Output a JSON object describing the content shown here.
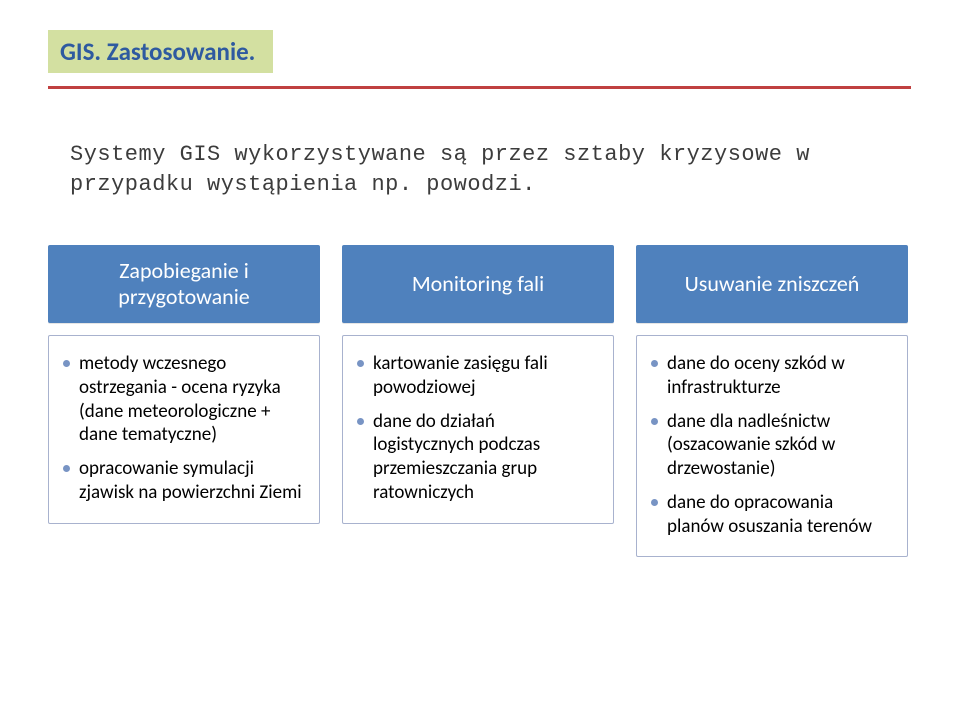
{
  "title": "GIS. Zastosowanie.",
  "title_color": "#2e5aa0",
  "title_bg": "#d3e0a1",
  "rule_color": "#c04040",
  "intro": "Systemy GIS wykorzystywane są przez sztaby kryzysowe w przypadku wystąpienia np. powodzi.",
  "intro_fontsize": 22,
  "header_fontsize": 22,
  "body_fontsize": 19,
  "body_border_color": "#a8b2ce",
  "columns": [
    {
      "header": "Zapobieganie i przygotowanie",
      "header_bg": "#4f81bd",
      "dot_color": "#7894c4",
      "bullets": [
        "metody wczesnego ostrzegania - ocena ryzyka (dane meteorologiczne + dane tematyczne)",
        "opracowanie symulacji zjawisk na powierzchni Ziemi"
      ]
    },
    {
      "header": "Monitoring fali",
      "header_bg": "#4f81bd",
      "dot_color": "#7894c4",
      "bullets": [
        "kartowanie zasięgu fali powodziowej",
        "dane do działań logistycznych podczas przemieszczania grup ratowniczych"
      ]
    },
    {
      "header": "Usuwanie zniszczeń",
      "header_bg": "#4f81bd",
      "dot_color": "#7894c4",
      "bullets": [
        "dane do oceny szkód w infrastrukturze",
        "dane dla nadleśnictw (oszacowanie szkód w drzewostanie)",
        "dane do opracowania planów osuszania terenów"
      ]
    }
  ]
}
